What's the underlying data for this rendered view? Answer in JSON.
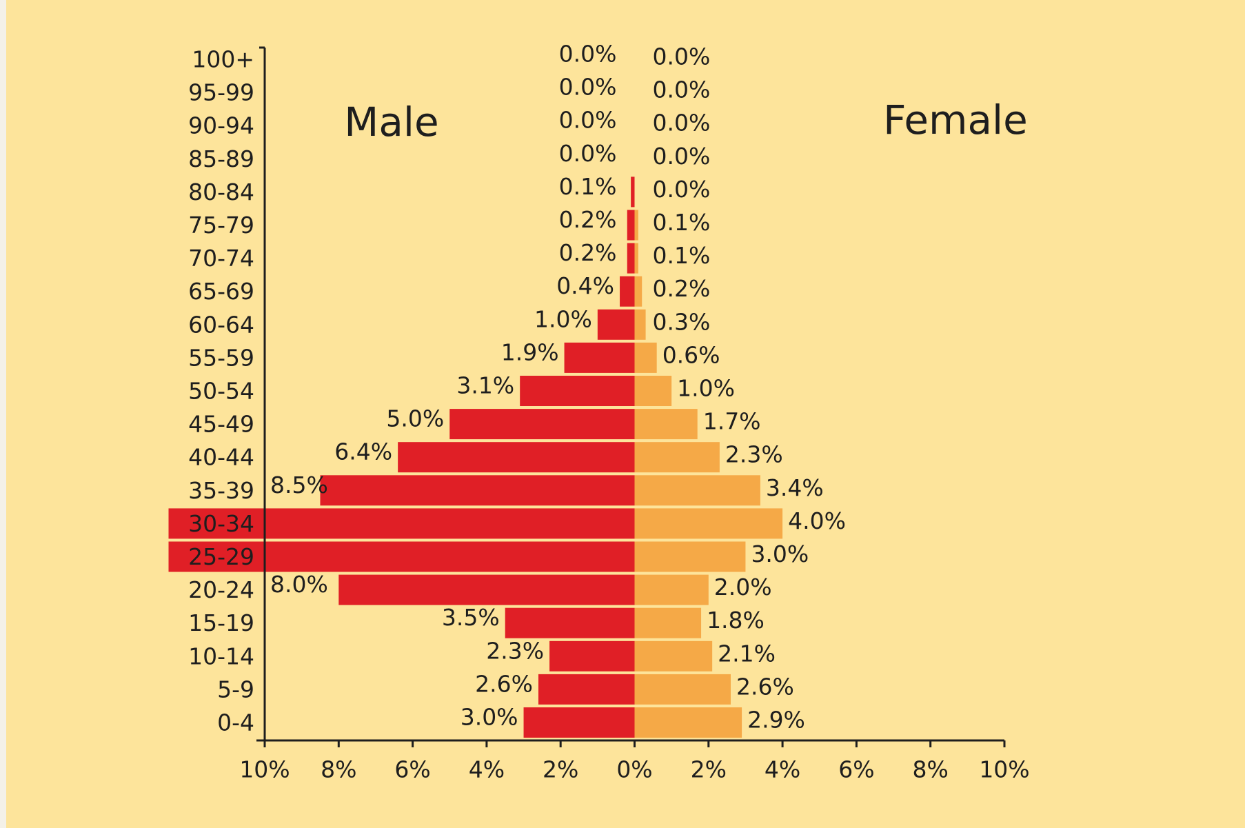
{
  "chart_data": {
    "type": "pyramid",
    "left_title": "Male",
    "right_title": "Female",
    "categories": [
      "0-4",
      "5-9",
      "10-14",
      "15-19",
      "20-24",
      "25-29",
      "30-34",
      "35-39",
      "40-44",
      "45-49",
      "50-54",
      "55-59",
      "60-64",
      "65-69",
      "70-74",
      "75-79",
      "80-84",
      "85-89",
      "90-94",
      "95-99",
      "100+"
    ],
    "series": [
      {
        "name": "Male",
        "color": "#e01f26",
        "values": [
          3.0,
          2.6,
          2.3,
          3.5,
          8.0,
          12.6,
          12.6,
          8.5,
          6.4,
          5.0,
          3.1,
          1.9,
          1.0,
          0.4,
          0.2,
          0.2,
          0.1,
          0.0,
          0.0,
          0.0,
          0.0
        ],
        "value_labels": [
          "3.0%",
          "2.6%",
          "2.3%",
          "3.5%",
          "8.0%",
          null,
          null,
          "8.5%",
          "6.4%",
          "5.0%",
          "3.1%",
          "1.9%",
          "1.0%",
          "0.4%",
          "0.2%",
          "0.2%",
          "0.1%",
          "0.0%",
          "0.0%",
          "0.0%",
          "0.0%"
        ]
      },
      {
        "name": "Female",
        "color": "#f5a947",
        "values": [
          2.9,
          2.6,
          2.1,
          1.8,
          2.0,
          3.0,
          4.0,
          3.4,
          2.3,
          1.7,
          1.0,
          0.6,
          0.3,
          0.2,
          0.1,
          0.1,
          0.0,
          0.0,
          0.0,
          0.0,
          0.0
        ],
        "value_labels": [
          "2.9%",
          "2.6%",
          "2.1%",
          "1.8%",
          "2.0%",
          "3.0%",
          "4.0%",
          "3.4%",
          "2.3%",
          "1.7%",
          "1.0%",
          "0.6%",
          "0.3%",
          "0.2%",
          "0.1%",
          "0.1%",
          "0.0%",
          "0.0%",
          "0.0%",
          "0.0%",
          "0.0%"
        ]
      }
    ],
    "xlim": [
      -10,
      10
    ],
    "xticks": [
      {
        "value": -10,
        "label": "10%"
      },
      {
        "value": -8,
        "label": "8%"
      },
      {
        "value": -6,
        "label": "6%"
      },
      {
        "value": -4,
        "label": "4%"
      },
      {
        "value": -2,
        "label": "2%"
      },
      {
        "value": 0,
        "label": "0%"
      },
      {
        "value": 2,
        "label": "2%"
      },
      {
        "value": 4,
        "label": "4%"
      },
      {
        "value": 6,
        "label": "6%"
      },
      {
        "value": 8,
        "label": "8%"
      },
      {
        "value": 10,
        "label": "10%"
      }
    ]
  }
}
